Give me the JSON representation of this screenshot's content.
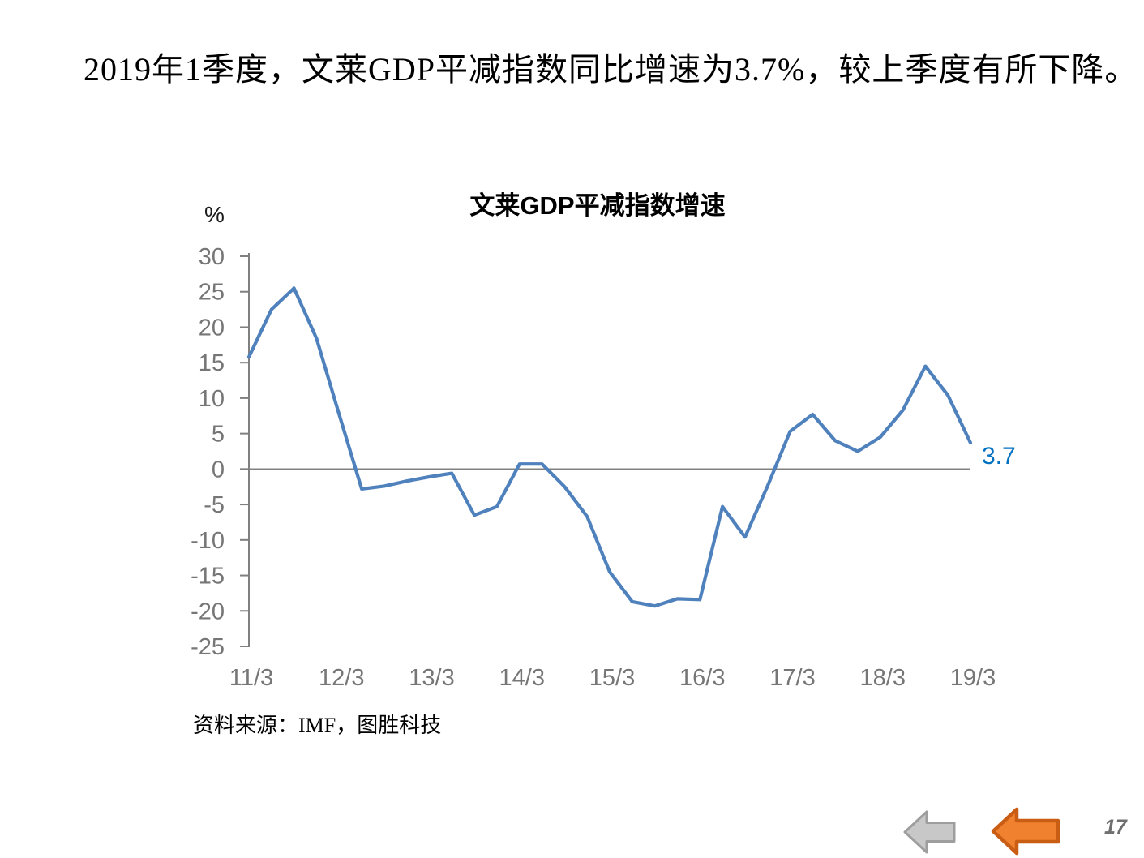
{
  "slide": {
    "headline": "2019年1季度，文莱GDP平减指数同比增速为3.7%，较上季度有所下降。",
    "source_note": "资料来源：IMF，图胜科技",
    "page_number": "17"
  },
  "chart_data": {
    "type": "line",
    "title": "文莱GDP平减指数增速",
    "y_unit_label": "%",
    "x": [
      "11/3",
      "11/6",
      "11/9",
      "11/12",
      "12/3",
      "12/6",
      "12/9",
      "12/12",
      "13/3",
      "13/6",
      "13/9",
      "13/12",
      "14/3",
      "14/6",
      "14/9",
      "14/12",
      "15/3",
      "15/6",
      "15/9",
      "15/12",
      "16/3",
      "16/6",
      "16/9",
      "16/12",
      "17/3",
      "17/6",
      "17/9",
      "17/12",
      "18/3",
      "18/6",
      "18/9",
      "18/12",
      "19/3"
    ],
    "x_axis_shown_labels": [
      "11/3",
      "12/3",
      "13/3",
      "14/3",
      "15/3",
      "16/3",
      "17/3",
      "18/3",
      "19/3"
    ],
    "series": [
      {
        "name": "文莱GDP平减指数增速",
        "values": [
          15.8,
          22.5,
          25.5,
          18.4,
          7.7,
          -2.8,
          -2.4,
          -1.7,
          -1.1,
          -0.6,
          -6.5,
          -5.3,
          0.7,
          0.7,
          -2.5,
          -6.7,
          -14.5,
          -18.7,
          -19.3,
          -18.3,
          -18.4,
          -5.3,
          -9.6,
          -2.4,
          5.3,
          7.7,
          4.0,
          2.5,
          4.5,
          8.3,
          14.5,
          10.4,
          3.7
        ]
      }
    ],
    "ylim": [
      -25,
      30
    ],
    "y_ticks": [
      30,
      25,
      20,
      15,
      10,
      5,
      0,
      -5,
      -10,
      -15,
      -20,
      -25
    ],
    "end_label": "3.7",
    "legend_position": "none",
    "grid": "zero-line-only",
    "colors": {
      "line": "#4F81BD",
      "end_label": "#0070C0",
      "axis": "#808080",
      "tick_labels": "#767676"
    }
  },
  "nav": {
    "gray_arrow_icon": "left-arrow",
    "orange_arrow_icon": "left-arrow",
    "arrow_gray_fill": "#C8C8C8",
    "arrow_gray_border": "#9E9E9E",
    "arrow_orange_fill": "#F0812F",
    "arrow_orange_border": "#C95D14"
  }
}
